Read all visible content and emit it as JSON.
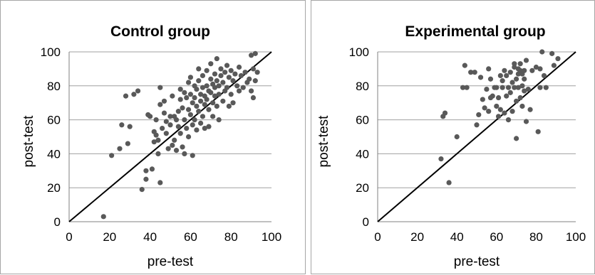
{
  "chart_data": [
    {
      "type": "scatter",
      "title": "Control group",
      "xlabel": "pre-test",
      "ylabel": "post-test",
      "xlim": [
        0,
        100
      ],
      "ylim": [
        0,
        100
      ],
      "xticks": [
        0,
        20,
        40,
        60,
        80,
        100
      ],
      "yticks": [
        0,
        20,
        40,
        60,
        80,
        100
      ],
      "grid": "horizontal",
      "reference_line": [
        [
          0,
          0
        ],
        [
          100,
          100
        ]
      ],
      "colors": {
        "points": "#595959",
        "grid": "#a0a0a0",
        "reference_line": "#000000"
      },
      "points": [
        [
          17,
          3
        ],
        [
          21,
          39
        ],
        [
          25,
          43
        ],
        [
          26,
          57
        ],
        [
          28,
          74
        ],
        [
          29,
          46
        ],
        [
          30,
          56
        ],
        [
          32,
          75
        ],
        [
          34,
          77
        ],
        [
          36,
          19
        ],
        [
          38,
          25
        ],
        [
          38,
          30
        ],
        [
          39,
          63
        ],
        [
          40,
          62
        ],
        [
          41,
          31
        ],
        [
          42,
          53
        ],
        [
          42,
          47
        ],
        [
          43,
          60
        ],
        [
          43,
          51
        ],
        [
          44,
          48
        ],
        [
          44,
          40
        ],
        [
          45,
          23
        ],
        [
          45,
          79
        ],
        [
          45,
          69
        ],
        [
          46,
          55
        ],
        [
          47,
          64
        ],
        [
          47,
          71
        ],
        [
          48,
          59
        ],
        [
          48,
          52
        ],
        [
          49,
          43
        ],
        [
          50,
          62
        ],
        [
          50,
          57
        ],
        [
          51,
          74
        ],
        [
          51,
          45
        ],
        [
          52,
          62
        ],
        [
          52,
          48
        ],
        [
          53,
          60
        ],
        [
          53,
          42
        ],
        [
          54,
          65
        ],
        [
          54,
          56
        ],
        [
          55,
          78
        ],
        [
          55,
          72
        ],
        [
          55,
          52
        ],
        [
          56,
          67
        ],
        [
          56,
          44
        ],
        [
          57,
          76
        ],
        [
          57,
          60
        ],
        [
          57,
          40
        ],
        [
          58,
          73
        ],
        [
          58,
          55
        ],
        [
          59,
          82
        ],
        [
          59,
          66
        ],
        [
          59,
          50
        ],
        [
          60,
          85
        ],
        [
          60,
          75
        ],
        [
          60,
          63
        ],
        [
          61,
          70
        ],
        [
          61,
          57
        ],
        [
          61,
          39
        ],
        [
          62,
          80
        ],
        [
          62,
          73
        ],
        [
          62,
          60
        ],
        [
          63,
          78
        ],
        [
          63,
          68
        ],
        [
          63,
          54
        ],
        [
          64,
          90
        ],
        [
          64,
          83
        ],
        [
          64,
          65
        ],
        [
          65,
          75
        ],
        [
          65,
          71
        ],
        [
          65,
          58
        ],
        [
          66,
          86
        ],
        [
          66,
          79
        ],
        [
          66,
          62
        ],
        [
          67,
          74
        ],
        [
          67,
          69
        ],
        [
          67,
          55
        ],
        [
          68,
          89
        ],
        [
          68,
          80
        ],
        [
          68,
          72
        ],
        [
          69,
          77
        ],
        [
          69,
          66
        ],
        [
          69,
          56
        ],
        [
          70,
          93
        ],
        [
          70,
          84
        ],
        [
          70,
          76
        ],
        [
          71,
          81
        ],
        [
          71,
          70
        ],
        [
          71,
          62
        ],
        [
          72,
          87
        ],
        [
          72,
          79
        ],
        [
          72,
          74
        ],
        [
          73,
          96
        ],
        [
          73,
          83
        ],
        [
          73,
          68
        ],
        [
          74,
          80
        ],
        [
          74,
          75
        ],
        [
          74,
          60
        ],
        [
          75,
          90
        ],
        [
          75,
          86
        ],
        [
          76,
          82
        ],
        [
          76,
          71
        ],
        [
          77,
          88
        ],
        [
          77,
          77
        ],
        [
          78,
          92
        ],
        [
          78,
          79
        ],
        [
          79,
          85
        ],
        [
          79,
          68
        ],
        [
          80,
          89
        ],
        [
          80,
          75
        ],
        [
          81,
          83
        ],
        [
          81,
          70
        ],
        [
          82,
          87
        ],
        [
          83,
          80
        ],
        [
          84,
          91
        ],
        [
          84,
          77
        ],
        [
          85,
          86
        ],
        [
          86,
          79
        ],
        [
          87,
          88
        ],
        [
          88,
          82
        ],
        [
          89,
          84
        ],
        [
          90,
          77
        ],
        [
          90,
          98
        ],
        [
          91,
          90
        ],
        [
          91,
          73
        ],
        [
          92,
          99
        ],
        [
          92,
          83
        ],
        [
          93,
          88
        ]
      ]
    },
    {
      "type": "scatter",
      "title": "Experimental group",
      "xlabel": "pre-test",
      "ylabel": "post-test",
      "xlim": [
        0,
        100
      ],
      "ylim": [
        0,
        100
      ],
      "xticks": [
        0,
        20,
        40,
        60,
        80,
        100
      ],
      "yticks": [
        0,
        20,
        40,
        60,
        80,
        100
      ],
      "grid": "horizontal",
      "reference_line": [
        [
          0,
          0
        ],
        [
          100,
          100
        ]
      ],
      "colors": {
        "points": "#595959",
        "grid": "#a0a0a0",
        "reference_line": "#000000"
      },
      "points": [
        [
          32,
          37
        ],
        [
          33,
          62
        ],
        [
          34,
          64
        ],
        [
          36,
          23
        ],
        [
          40,
          50
        ],
        [
          43,
          79
        ],
        [
          44,
          92
        ],
        [
          45,
          79
        ],
        [
          47,
          88
        ],
        [
          49,
          88
        ],
        [
          50,
          57
        ],
        [
          51,
          63
        ],
        [
          52,
          85
        ],
        [
          53,
          72
        ],
        [
          54,
          67
        ],
        [
          55,
          78
        ],
        [
          56,
          65
        ],
        [
          56,
          90
        ],
        [
          57,
          73
        ],
        [
          57,
          84
        ],
        [
          58,
          74
        ],
        [
          59,
          79
        ],
        [
          60,
          68
        ],
        [
          60,
          79
        ],
        [
          61,
          62
        ],
        [
          61,
          73
        ],
        [
          62,
          86
        ],
        [
          62,
          66
        ],
        [
          63,
          79
        ],
        [
          63,
          83
        ],
        [
          64,
          89
        ],
        [
          64,
          64
        ],
        [
          65,
          74
        ],
        [
          65,
          86
        ],
        [
          66,
          79
        ],
        [
          66,
          60
        ],
        [
          67,
          88
        ],
        [
          67,
          76
        ],
        [
          68,
          65
        ],
        [
          68,
          82
        ],
        [
          69,
          91
        ],
        [
          69,
          93
        ],
        [
          69,
          79
        ],
        [
          70,
          84
        ],
        [
          70,
          71
        ],
        [
          70,
          49
        ],
        [
          71,
          90
        ],
        [
          71,
          87
        ],
        [
          71,
          79
        ],
        [
          72,
          89
        ],
        [
          72,
          73
        ],
        [
          72,
          93
        ],
        [
          73,
          87
        ],
        [
          73,
          80
        ],
        [
          73,
          68
        ],
        [
          74,
          89
        ],
        [
          74,
          84
        ],
        [
          74,
          77
        ],
        [
          75,
          95
        ],
        [
          75,
          59
        ],
        [
          76,
          78
        ],
        [
          77,
          66
        ],
        [
          78,
          89
        ],
        [
          80,
          91
        ],
        [
          81,
          53
        ],
        [
          82,
          90
        ],
        [
          82,
          79
        ],
        [
          83,
          100
        ],
        [
          84,
          86
        ],
        [
          85,
          79
        ],
        [
          88,
          99
        ],
        [
          89,
          92
        ],
        [
          91,
          96
        ]
      ]
    }
  ]
}
